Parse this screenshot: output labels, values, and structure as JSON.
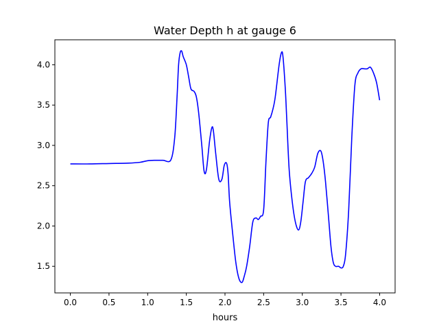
{
  "chart_data": {
    "type": "line",
    "title": "Water Depth h at gauge 6",
    "xlabel": "hours",
    "ylabel": "",
    "xlim": [
      -0.2,
      4.2
    ],
    "ylim": [
      1.17,
      4.31
    ],
    "xticks": [
      0.0,
      0.5,
      1.0,
      1.5,
      2.0,
      2.5,
      3.0,
      3.5,
      4.0
    ],
    "xtick_labels": [
      "0.0",
      "0.5",
      "1.0",
      "1.5",
      "2.0",
      "2.5",
      "3.0",
      "3.5",
      "4.0"
    ],
    "yticks": [
      1.5,
      2.0,
      2.5,
      3.0,
      3.5,
      4.0
    ],
    "ytick_labels": [
      "1.5",
      "2.0",
      "2.5",
      "3.0",
      "3.5",
      "4.0"
    ],
    "grid": false,
    "series": [
      {
        "color": "#0000ff",
        "x": [
          0.0,
          0.25,
          0.5,
          0.75,
          0.9,
          1.0,
          1.1,
          1.2,
          1.3,
          1.35,
          1.38,
          1.4,
          1.42,
          1.44,
          1.46,
          1.5,
          1.53,
          1.56,
          1.6,
          1.63,
          1.66,
          1.7,
          1.73,
          1.76,
          1.8,
          1.83,
          1.85,
          1.88,
          1.92,
          1.96,
          1.99,
          2.02,
          2.04,
          2.06,
          2.1,
          2.14,
          2.18,
          2.22,
          2.25,
          2.28,
          2.32,
          2.36,
          2.4,
          2.43,
          2.46,
          2.5,
          2.53,
          2.56,
          2.59,
          2.62,
          2.65,
          2.7,
          2.73,
          2.75,
          2.78,
          2.8,
          2.83,
          2.87,
          2.91,
          2.95,
          2.98,
          3.01,
          3.04,
          3.08,
          3.12,
          3.16,
          3.2,
          3.24,
          3.27,
          3.3,
          3.34,
          3.37,
          3.4,
          3.43,
          3.47,
          3.5,
          3.53,
          3.56,
          3.6,
          3.64,
          3.68,
          3.72,
          3.76,
          3.8,
          3.84,
          3.88,
          3.92,
          3.96,
          4.0
        ],
        "y": [
          2.77,
          2.77,
          2.775,
          2.78,
          2.79,
          2.81,
          2.815,
          2.815,
          2.82,
          3.1,
          3.6,
          4.0,
          4.15,
          4.17,
          4.1,
          4.0,
          3.85,
          3.7,
          3.67,
          3.6,
          3.4,
          3.0,
          2.68,
          2.7,
          3.05,
          3.22,
          3.18,
          2.9,
          2.58,
          2.58,
          2.75,
          2.78,
          2.65,
          2.3,
          1.9,
          1.55,
          1.35,
          1.3,
          1.38,
          1.5,
          1.75,
          2.05,
          2.1,
          2.08,
          2.12,
          2.2,
          2.8,
          3.28,
          3.35,
          3.45,
          3.6,
          4.0,
          4.15,
          4.1,
          3.7,
          3.3,
          2.7,
          2.3,
          2.05,
          1.95,
          2.05,
          2.3,
          2.55,
          2.6,
          2.65,
          2.73,
          2.9,
          2.93,
          2.8,
          2.55,
          2.1,
          1.75,
          1.55,
          1.5,
          1.5,
          1.48,
          1.5,
          1.65,
          2.2,
          3.1,
          3.75,
          3.9,
          3.95,
          3.95,
          3.95,
          3.97,
          3.9,
          3.78,
          3.56
        ]
      }
    ]
  }
}
